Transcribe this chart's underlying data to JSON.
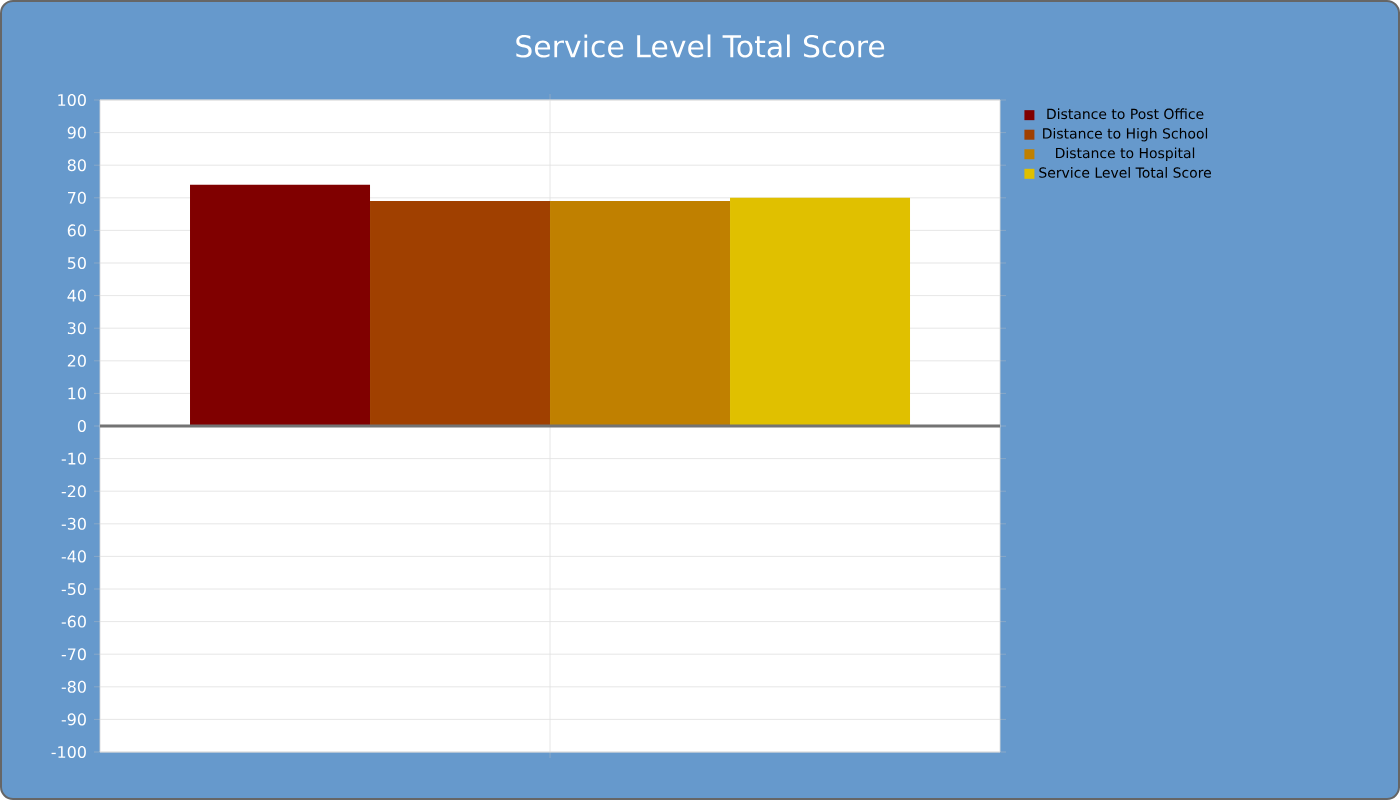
{
  "chart_data": {
    "type": "bar",
    "title": "Service Level Total Score",
    "categories": [
      null
    ],
    "series": [
      {
        "name": "Distance to Post Office",
        "color": "#800000",
        "values": [
          74
        ]
      },
      {
        "name": "Distance to High School",
        "color": "#a04000",
        "values": [
          69
        ]
      },
      {
        "name": "Distance to Hospital",
        "color": "#c08000",
        "values": [
          69
        ]
      },
      {
        "name": "Service Level Total Score",
        "color": "#e0c000",
        "values": [
          70
        ]
      }
    ],
    "ylim": [
      -100,
      100
    ],
    "yticks": [
      -100,
      -90,
      -80,
      -70,
      -60,
      -50,
      -40,
      -30,
      -20,
      -10,
      0,
      10,
      20,
      30,
      40,
      50,
      60,
      70,
      80,
      90,
      100
    ],
    "grid": true,
    "legend": "top right"
  }
}
